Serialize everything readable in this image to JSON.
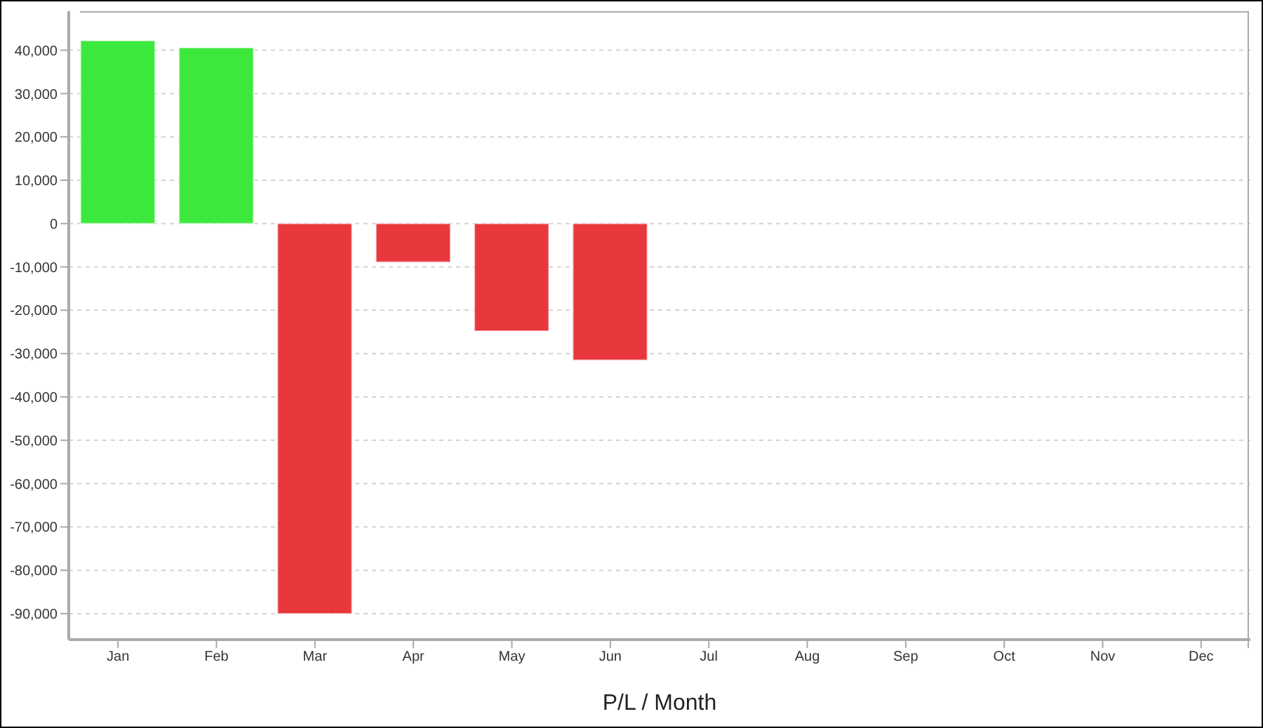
{
  "chart_data": {
    "type": "bar",
    "xlabel": "P/L / Month",
    "categories": [
      "Jan",
      "Feb",
      "Mar",
      "Apr",
      "May",
      "Jun",
      "Jul",
      "Aug",
      "Sep",
      "Oct",
      "Nov",
      "Dec"
    ],
    "values": [
      42200,
      40600,
      -90000,
      -8900,
      -24800,
      -31500,
      null,
      null,
      null,
      null,
      null,
      null
    ],
    "colors": [
      "#3de83d",
      "#3de83d",
      "#e8383d",
      "#e8383d",
      "#e8383d",
      "#e8383d",
      null,
      null,
      null,
      null,
      null,
      null
    ],
    "ylim": [
      -96000,
      49000
    ],
    "yticks": [
      {
        "value": 40000,
        "label": "40,000"
      },
      {
        "value": 30000,
        "label": "30,000"
      },
      {
        "value": 20000,
        "label": "20,000"
      },
      {
        "value": 10000,
        "label": "10,000"
      },
      0,
      {
        "value": -10000,
        "label": "-10,000"
      },
      {
        "value": -20000,
        "label": "-20,000"
      },
      {
        "value": -30000,
        "label": "-30,000"
      },
      {
        "value": -40000,
        "label": "-40,000"
      },
      {
        "value": -50000,
        "label": "-50,000"
      },
      {
        "value": -60000,
        "label": "-60,000"
      },
      {
        "value": -70000,
        "label": "-70,000"
      },
      {
        "value": -80000,
        "label": "-80,000"
      },
      {
        "value": -90000,
        "label": "-90,000"
      }
    ],
    "grid": "y",
    "legend": false
  }
}
